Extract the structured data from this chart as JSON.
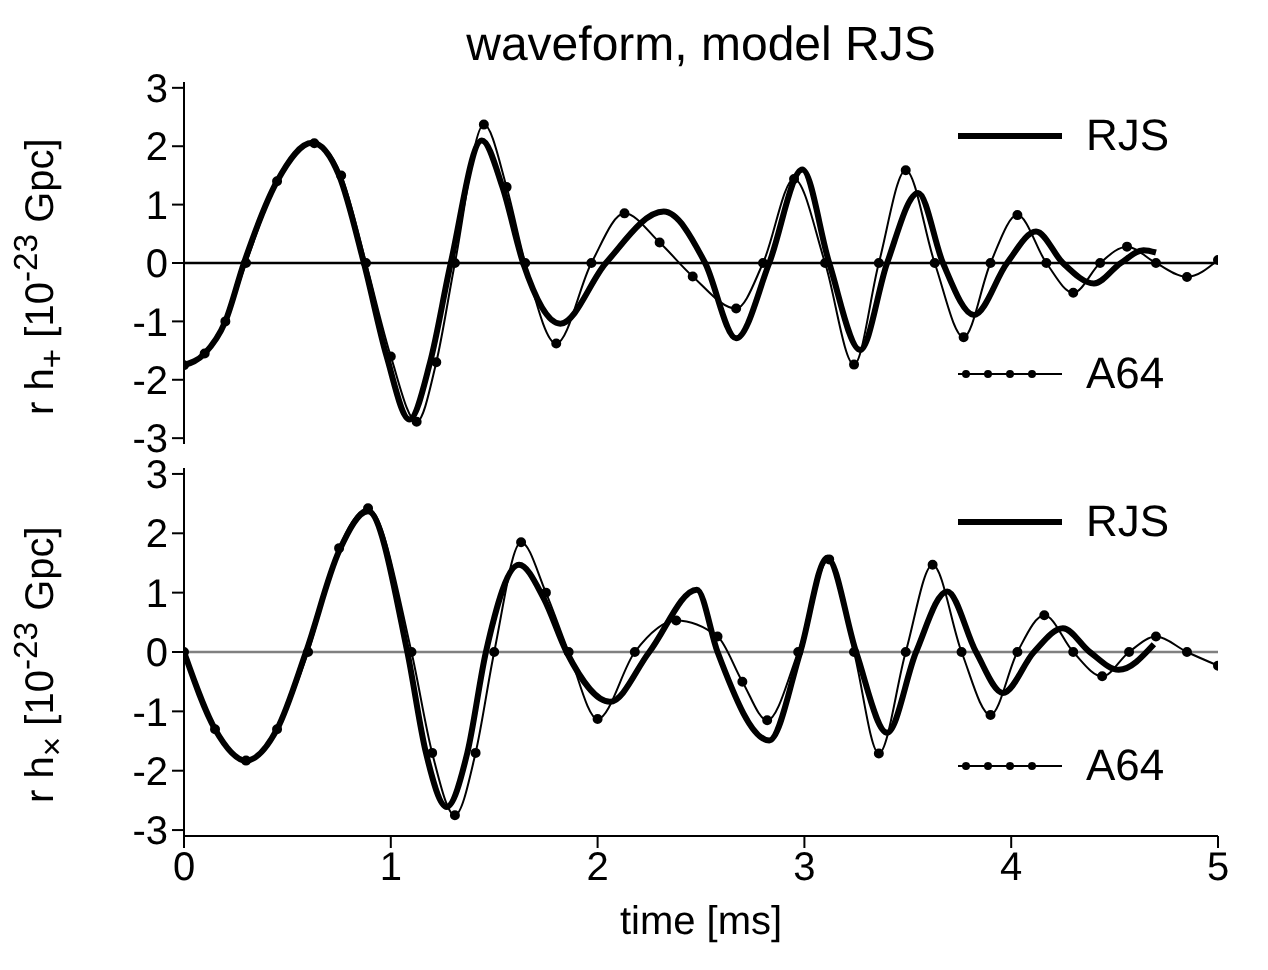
{
  "chart_data": [
    {
      "type": "line",
      "title": "waveform, model RJS",
      "ylabel": "r h$_{+}$ [10$^{-23}$ Gpc]",
      "xlim": [
        0,
        5
      ],
      "xticks": [
        0,
        1,
        2,
        3,
        4,
        5
      ],
      "ylim": [
        -3.1,
        3.1
      ],
      "yticks": [
        -3,
        -2,
        -1,
        0,
        1,
        2,
        3
      ],
      "tick_labels": "y",
      "grid": false,
      "legend": "right",
      "line_style": "solid",
      "ref_lines": [
        {
          "axis": "y",
          "value": 0,
          "color": "#000000"
        }
      ],
      "series": [
        {
          "name": "RJS",
          "color": "#000000",
          "marker": "none",
          "x": [
            0,
            0.1,
            0.2,
            0.29,
            0.45,
            0.62,
            0.75,
            0.87,
            0.98,
            1.09,
            1.19,
            1.29,
            1.44,
            1.54,
            1.64,
            1.82,
            2.04,
            2.32,
            2.52,
            2.67,
            2.83,
            2.99,
            3.12,
            3.27,
            3.4,
            3.55,
            3.67,
            3.82,
            3.98,
            4.12,
            4.25,
            4.4,
            4.53,
            4.64,
            4.7
          ],
          "values": [
            -1.75,
            -1.55,
            -1.0,
            0,
            1.4,
            2.06,
            1.5,
            0,
            -1.6,
            -2.68,
            -1.7,
            0,
            2.1,
            1.3,
            0,
            -1.04,
            0,
            0.88,
            0,
            -1.29,
            0,
            1.6,
            0,
            -1.49,
            0,
            1.2,
            0,
            -0.89,
            0,
            0.54,
            0,
            -0.35,
            0,
            0.22,
            0.18
          ]
        },
        {
          "name": "A64",
          "color": "#000000",
          "marker": "circle",
          "x": [
            0,
            0.1,
            0.2,
            0.3,
            0.45,
            0.63,
            0.76,
            0.88,
            1.0,
            1.125,
            1.22,
            1.31,
            1.45,
            1.56,
            1.65,
            1.8,
            1.97,
            2.13,
            2.3,
            2.46,
            2.67,
            2.8,
            2.95,
            3.1,
            3.24,
            3.36,
            3.49,
            3.63,
            3.77,
            3.9,
            4.03,
            4.17,
            4.3,
            4.43,
            4.56,
            4.7,
            4.85,
            5.0
          ],
          "values": [
            -1.75,
            -1.55,
            -1.0,
            0,
            1.4,
            2.05,
            1.5,
            0,
            -1.6,
            -2.72,
            -1.7,
            0,
            2.37,
            1.3,
            0,
            -1.38,
            0,
            0.85,
            0.35,
            -0.23,
            -0.78,
            0,
            1.44,
            0,
            -1.74,
            0,
            1.59,
            0,
            -1.27,
            0,
            0.82,
            0,
            -0.51,
            0,
            0.28,
            0,
            -0.24,
            0.05
          ]
        }
      ]
    },
    {
      "type": "line",
      "xlabel": "time [ms]",
      "ylabel": "r h$_{×}$ [10$^{-23}$ Gpc]",
      "xlim": [
        0,
        5
      ],
      "xticks": [
        0,
        1,
        2,
        3,
        4,
        5
      ],
      "ylim": [
        -3.1,
        3.1
      ],
      "yticks": [
        -3,
        -2,
        -1,
        0,
        1,
        2,
        3
      ],
      "grid": false,
      "legend": "right",
      "line_style": "solid",
      "ref_lines": [
        {
          "axis": "y",
          "value": 0,
          "color": "#808080"
        }
      ],
      "series": [
        {
          "name": "RJS",
          "color": "#000000",
          "marker": "none",
          "x": [
            0,
            0.15,
            0.3,
            0.45,
            0.59,
            0.75,
            0.89,
            1.08,
            1.17,
            1.27,
            1.37,
            1.46,
            1.62,
            1.74,
            1.85,
            2.06,
            2.25,
            2.48,
            2.58,
            2.83,
            2.98,
            3.11,
            3.25,
            3.4,
            3.54,
            3.69,
            3.83,
            3.96,
            4.11,
            4.25,
            4.38,
            4.52,
            4.69
          ],
          "values": [
            0,
            -1.3,
            -1.83,
            -1.3,
            0,
            1.7,
            2.37,
            0,
            -1.7,
            -2.61,
            -1.7,
            0,
            1.47,
            0.9,
            0,
            -0.84,
            0,
            1.05,
            0,
            -1.49,
            0,
            1.59,
            0,
            -1.36,
            0,
            1.02,
            0,
            -0.69,
            0,
            0.4,
            0,
            -0.3,
            0.13
          ]
        },
        {
          "name": "A64",
          "color": "#000000",
          "marker": "circle",
          "x": [
            0,
            0.15,
            0.3,
            0.45,
            0.6,
            0.75,
            0.89,
            1.1,
            1.2,
            1.31,
            1.41,
            1.5,
            1.63,
            1.75,
            1.86,
            2.0,
            2.18,
            2.38,
            2.58,
            2.7,
            2.82,
            2.97,
            3.12,
            3.24,
            3.36,
            3.49,
            3.62,
            3.76,
            3.9,
            4.03,
            4.16,
            4.3,
            4.44,
            4.57,
            4.7,
            4.85,
            5.0
          ],
          "values": [
            0,
            -1.3,
            -1.83,
            -1.3,
            0,
            1.75,
            2.42,
            0,
            -1.7,
            -2.75,
            -1.7,
            0,
            1.85,
            1.0,
            0,
            -1.13,
            0,
            0.53,
            0.26,
            -0.5,
            -1.15,
            0,
            1.56,
            0,
            -1.71,
            0,
            1.47,
            0,
            -1.06,
            0,
            0.62,
            0,
            -0.41,
            0,
            0.26,
            0,
            -0.23
          ]
        }
      ]
    }
  ]
}
